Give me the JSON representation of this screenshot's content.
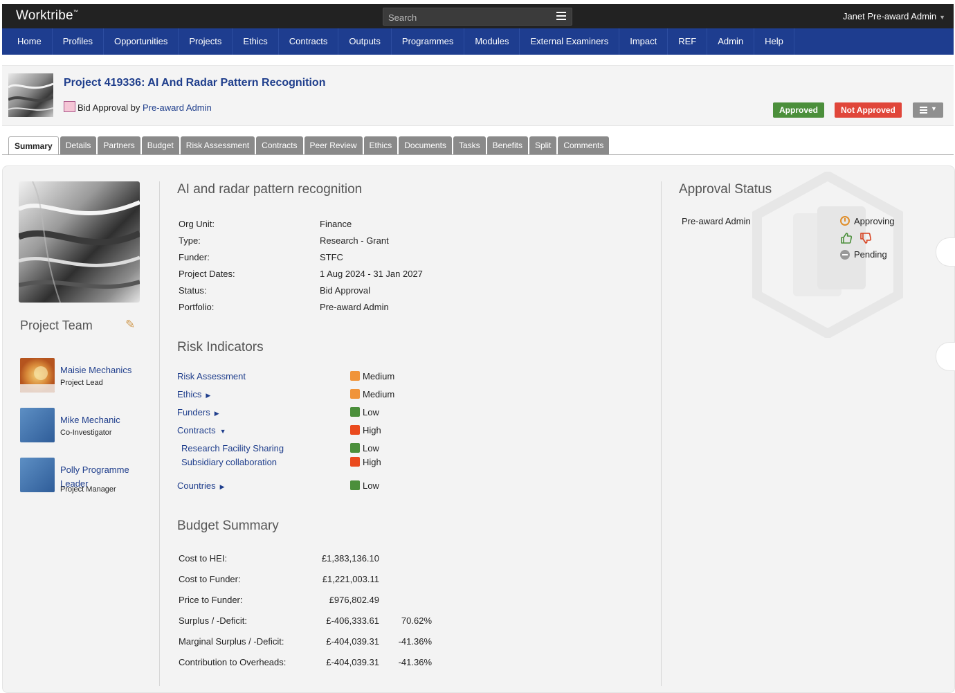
{
  "app": {
    "logo": "Worktribe",
    "logo_tm": "™",
    "user": "Janet Pre-award Admin"
  },
  "search": {
    "placeholder": "Search"
  },
  "nav": [
    "Home",
    "Profiles",
    "Opportunities",
    "Projects",
    "Ethics",
    "Contracts",
    "Outputs",
    "Programmes",
    "Modules",
    "External Examiners",
    "Impact",
    "REF",
    "Admin",
    "Help"
  ],
  "project": {
    "title": "Project 419336: AI And Radar Pattern Recognition",
    "status_prefix": "Bid Approval by",
    "status_owner": "Pre-award Admin",
    "approve_label": "Approved",
    "not_approve_label": "Not Approved"
  },
  "tabs": [
    "Summary",
    "Details",
    "Partners",
    "Budget",
    "Risk Assessment",
    "Contracts",
    "Peer Review",
    "Ethics",
    "Documents",
    "Tasks",
    "Benefits",
    "Split",
    "Comments"
  ],
  "team": {
    "heading": "Project Team",
    "members": [
      {
        "name": "Maisie Mechanics",
        "role": "Project Lead"
      },
      {
        "name": "Mike Mechanic",
        "role": "Co-Investigator"
      },
      {
        "name": "Polly Programme Leader",
        "role": "Project Manager"
      }
    ]
  },
  "summary": {
    "heading": "AI and radar pattern recognition",
    "fields": [
      {
        "label": "Org Unit:",
        "value": "Finance"
      },
      {
        "label": "Type:",
        "value": "Research - Grant"
      },
      {
        "label": "Funder:",
        "value": "STFC"
      },
      {
        "label": "Project Dates:",
        "value": "1 Aug 2024 - 31 Jan 2027"
      },
      {
        "label": "Status:",
        "value": "Bid Approval"
      },
      {
        "label": "Portfolio:",
        "value": "Pre-award Admin"
      }
    ]
  },
  "risk": {
    "heading": "Risk Indicators",
    "colors": {
      "Medium": "#f0943a",
      "Low": "#4b8f3b",
      "High": "#ea4a1e"
    },
    "items": [
      {
        "label": "Risk Assessment",
        "level": "Medium"
      },
      {
        "label": "Ethics",
        "level": "Medium"
      },
      {
        "label": "Funders",
        "level": "Low"
      },
      {
        "label": "Contracts",
        "level": "High"
      },
      {
        "label": "Research Facility Sharing",
        "level": "Low"
      },
      {
        "label": "Subsidiary collaboration",
        "level": "High"
      },
      {
        "label": "Countries",
        "level": "Low"
      }
    ]
  },
  "budget": {
    "heading": "Budget Summary",
    "rows": [
      {
        "label": "Cost to HEI:",
        "value": "£1,383,136.10",
        "pct": ""
      },
      {
        "label": "Cost to Funder:",
        "value": "£1,221,003.11",
        "pct": ""
      },
      {
        "label": "Price to Funder:",
        "value": "£976,802.49",
        "pct": ""
      },
      {
        "label": "Surplus / -Deficit:",
        "value": "£-406,333.61",
        "pct": "70.62%"
      },
      {
        "label": "Marginal Surplus / -Deficit:",
        "value": "£-404,039.31",
        "pct": "-41.36%"
      },
      {
        "label": "Contribution to Overheads:",
        "value": "£-404,039.31",
        "pct": "-41.36%"
      }
    ]
  },
  "approval": {
    "heading": "Approval Status",
    "approver": "Pre-award Admin",
    "state_current": "Approving",
    "state_next": "Pending"
  }
}
